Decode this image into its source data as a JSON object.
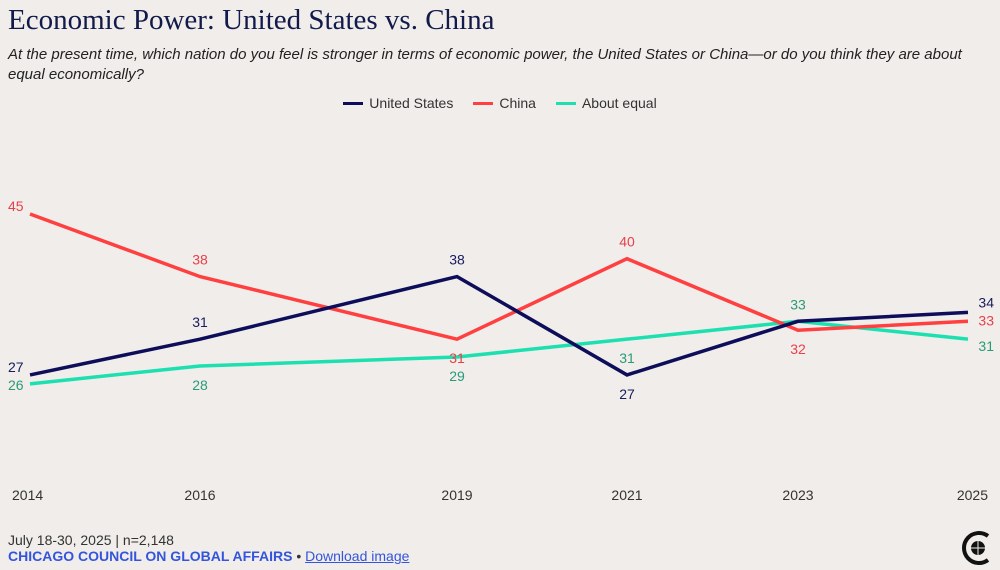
{
  "title": "Economic Power: United States vs. China",
  "subtitle": "At the present time, which nation do you feel is stronger in terms of economic power, the United States or China—or do you think they are about equal economically?",
  "footer": {
    "sample": "July 18-30, 2025 | n=2,148",
    "org": "CHICAGO COUNCIL ON GLOBAL AFFAIRS",
    "separator": "•",
    "download": "Download image"
  },
  "chart_data": {
    "type": "line",
    "x": [
      "2014",
      "2016",
      "2019",
      "2021",
      "2023",
      "2025"
    ],
    "series": [
      {
        "name": "United States",
        "color": "#0d0d5a",
        "label_color": "#1a1a5e",
        "values": [
          27,
          31,
          38,
          27,
          33,
          34
        ]
      },
      {
        "name": "China",
        "color": "#ff4040",
        "label_color": "#e8404a",
        "values": [
          45,
          38,
          31,
          40,
          32,
          33
        ]
      },
      {
        "name": "About equal",
        "color": "#1de0b0",
        "label_color": "#2a9a78",
        "values": [
          26,
          28,
          29,
          31,
          33,
          31
        ]
      }
    ],
    "legend": "top-center",
    "grid": false,
    "data_labels": true
  }
}
